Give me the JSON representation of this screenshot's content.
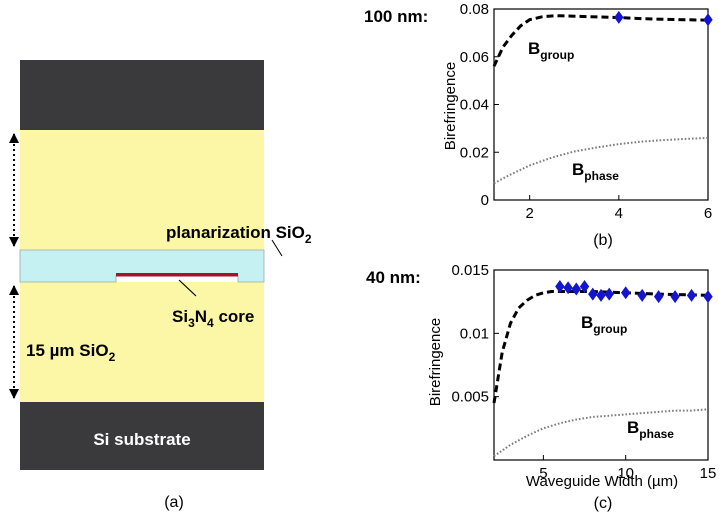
{
  "panel_a": {
    "caption": "(a)",
    "label_planarization": "planarization SiO",
    "label_planarization_sub": "2",
    "label_core_si": "Si",
    "label_core_sub3": "3",
    "label_core_n": "N",
    "label_core_sub4": "4",
    "label_core_rest": " core",
    "label_oxide": "15 µm SiO",
    "label_oxide_sub": "2",
    "label_substrate": "Si substrate",
    "colors": {
      "substrate": "#3a3a3c",
      "oxide": "#fcf7a6",
      "planarization": "#c5f1f3",
      "core": "#a8102e"
    }
  },
  "chart_data": [
    {
      "type": "line",
      "side_label": "100 nm:",
      "caption": "(b)",
      "xlabel": "",
      "ylabel": "Birefringence",
      "xlim": [
        1.2,
        6
      ],
      "ylim": [
        0,
        0.08
      ],
      "xticks": [
        "2",
        "4",
        "6"
      ],
      "xtick_values": [
        2,
        4,
        6
      ],
      "yticks": [
        "0",
        "0.02",
        "0.04",
        "0.06",
        "0.08"
      ],
      "ytick_values": [
        0,
        0.02,
        0.04,
        0.06,
        0.08
      ],
      "grid": false,
      "series": [
        {
          "label_main": "B",
          "label_sub": "group",
          "style": "dashed",
          "color": "#000000",
          "x": [
            1.2,
            1.4,
            1.6,
            1.8,
            2.0,
            2.3,
            2.6,
            3.0,
            3.5,
            4.0,
            4.5,
            5.0,
            5.5,
            6.0
          ],
          "y": [
            0.056,
            0.064,
            0.069,
            0.073,
            0.0755,
            0.0768,
            0.0772,
            0.077,
            0.0767,
            0.0764,
            0.076,
            0.0757,
            0.0755,
            0.0753
          ]
        },
        {
          "label_main": "B",
          "label_sub": "phase",
          "style": "dotted",
          "color": "#7a7a7a",
          "x": [
            1.2,
            1.5,
            2.0,
            2.5,
            3.0,
            3.5,
            4.0,
            4.5,
            5.0,
            5.5,
            6.0
          ],
          "y": [
            0.007,
            0.01,
            0.0145,
            0.0178,
            0.0203,
            0.022,
            0.0234,
            0.0244,
            0.0251,
            0.0256,
            0.026
          ]
        },
        {
          "style": "markers",
          "marker": "diamond",
          "color": "#1515d0",
          "x": [
            4.0,
            6.0
          ],
          "y": [
            0.0765,
            0.0755
          ]
        }
      ]
    },
    {
      "type": "line",
      "side_label": "40 nm:",
      "caption": "(c)",
      "xlabel": "Waveguide Width (µm)",
      "ylabel": "Birefringence",
      "xlim": [
        2,
        15
      ],
      "ylim": [
        0,
        0.015
      ],
      "xticks": [
        "5",
        "10",
        "15"
      ],
      "xtick_values": [
        5,
        10,
        15
      ],
      "yticks": [
        "0.005",
        "0.01",
        "0.015"
      ],
      "ytick_values": [
        0.005,
        0.01,
        0.015
      ],
      "grid": false,
      "series": [
        {
          "label_main": "B",
          "label_sub": "group",
          "style": "dashed",
          "color": "#000000",
          "x": [
            2.0,
            2.5,
            3.0,
            3.5,
            4.0,
            4.5,
            5.0,
            5.5,
            6.0,
            7.0,
            8.0,
            10.0,
            12.0,
            15.0
          ],
          "y": [
            0.0045,
            0.0085,
            0.0108,
            0.012,
            0.0126,
            0.013,
            0.0132,
            0.0133,
            0.0133,
            0.0133,
            0.0133,
            0.0132,
            0.0131,
            0.013
          ]
        },
        {
          "label_main": "B",
          "label_sub": "phase",
          "style": "dotted",
          "color": "#7a7a7a",
          "x": [
            2.0,
            3.0,
            4.0,
            5.0,
            6.0,
            7.0,
            8.0,
            9.0,
            10.0,
            11.0,
            12.0,
            13.0,
            14.0,
            15.0
          ],
          "y": [
            0.0003,
            0.0012,
            0.0019,
            0.0025,
            0.0029,
            0.0032,
            0.0034,
            0.0035,
            0.0036,
            0.0037,
            0.0038,
            0.0039,
            0.0039,
            0.004
          ]
        },
        {
          "style": "markers",
          "marker": "diamond",
          "color": "#1515d0",
          "x": [
            6.0,
            6.5,
            7.0,
            7.5,
            8.0,
            8.5,
            9.0,
            10.0,
            11.0,
            12.0,
            13.0,
            14.0,
            15.0
          ],
          "y": [
            0.0137,
            0.0136,
            0.0135,
            0.0137,
            0.0131,
            0.013,
            0.0131,
            0.0132,
            0.013,
            0.0129,
            0.0129,
            0.013,
            0.0129
          ]
        }
      ]
    }
  ]
}
